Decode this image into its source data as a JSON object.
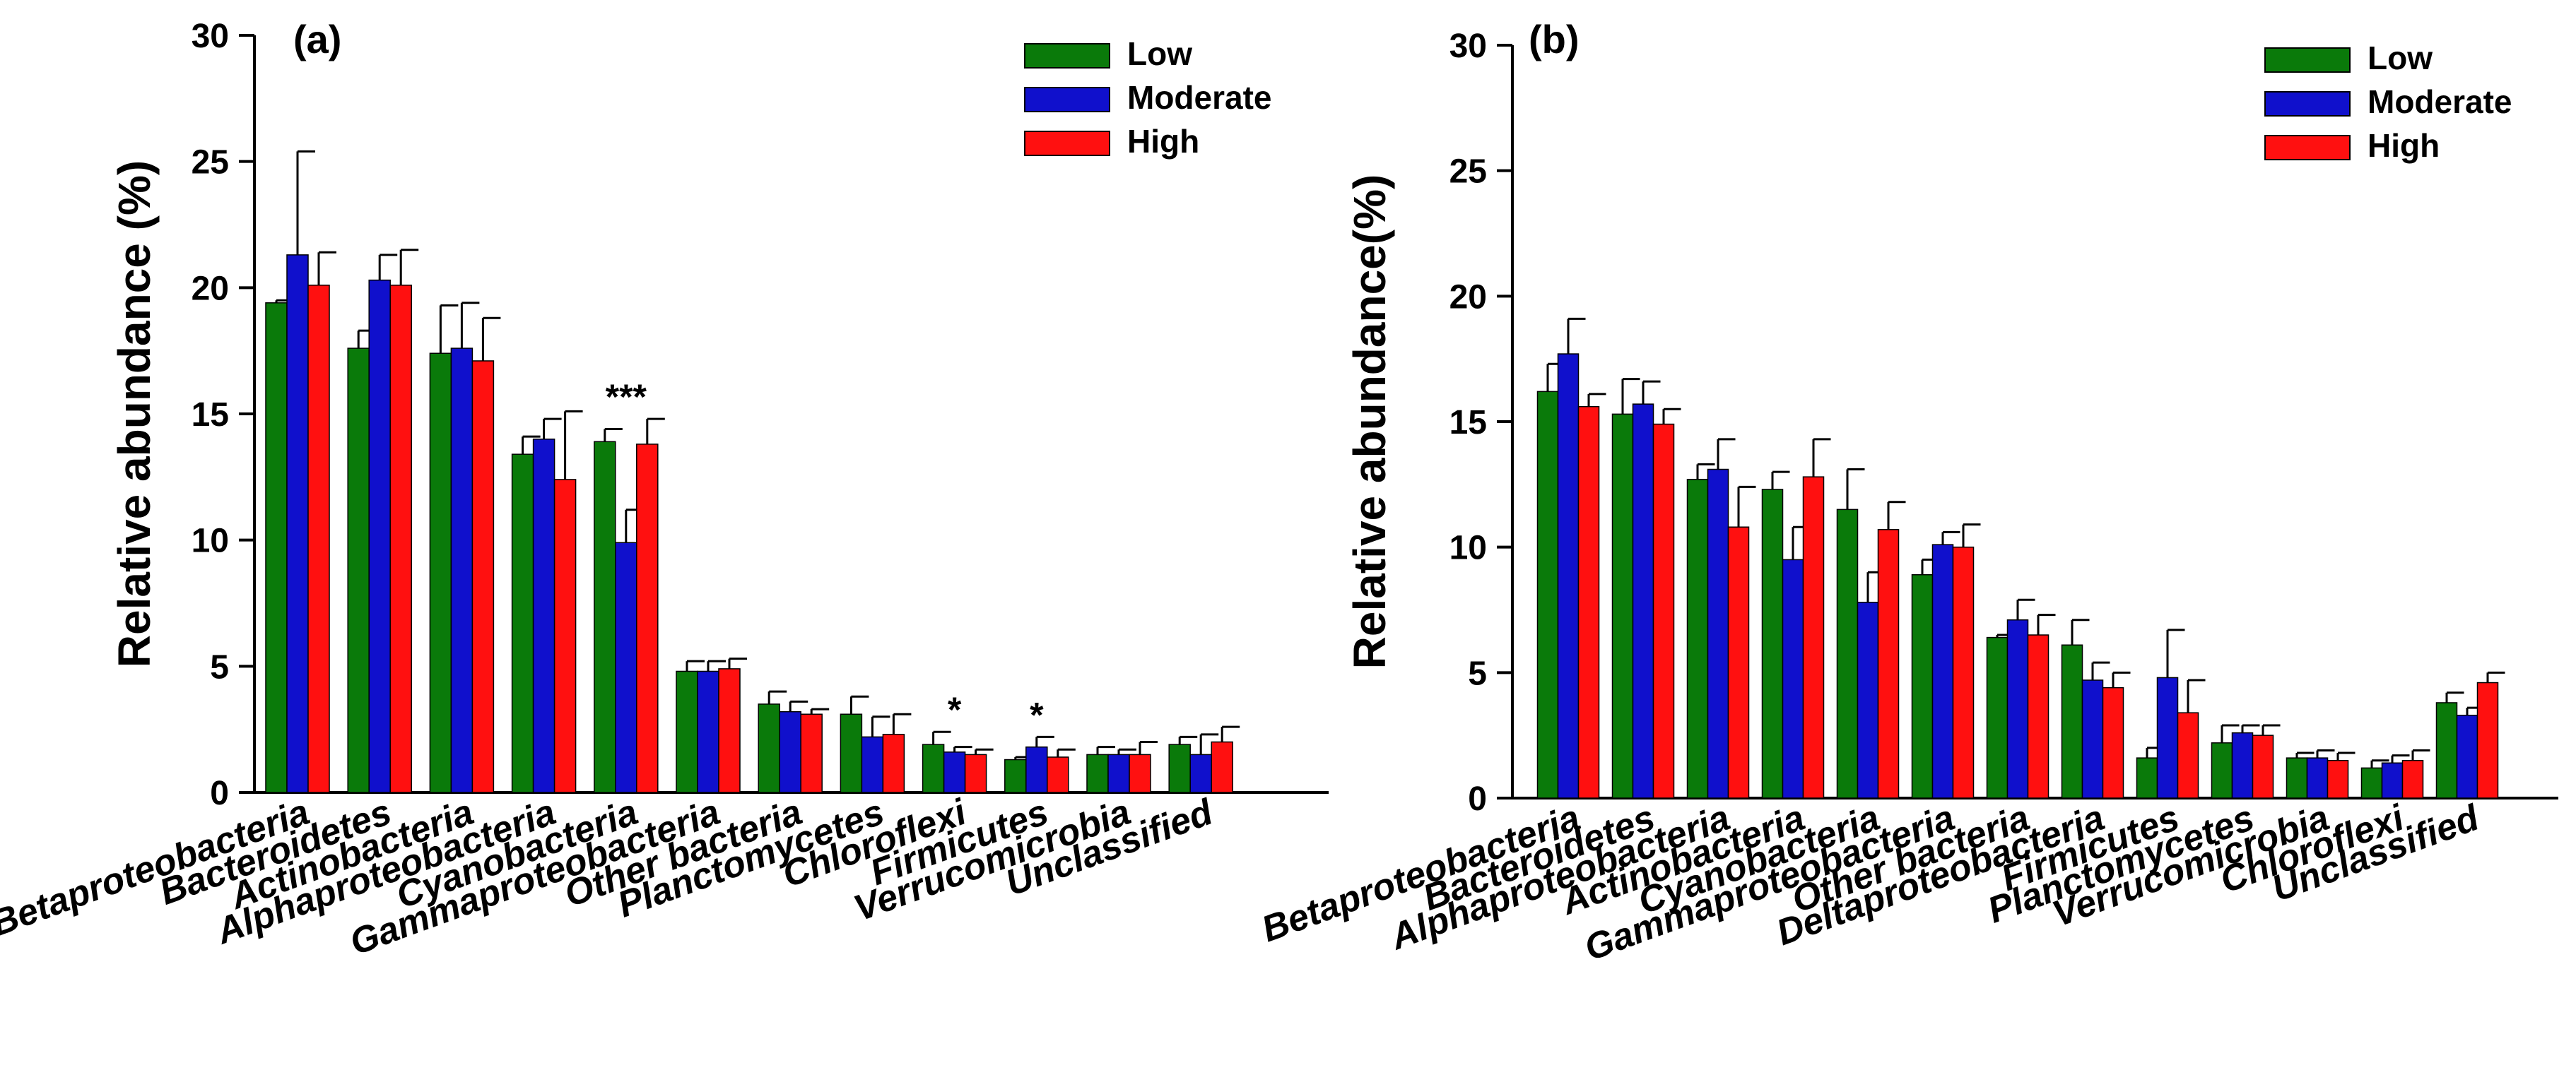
{
  "colors": {
    "Low": "#0a7a0a",
    "Moderate": "#1010cc",
    "High": "#ff1010",
    "axis": "#000000"
  },
  "chart_data": [
    {
      "type": "bar",
      "panel_label": "(a)",
      "ylabel": "Relative abundance (%)",
      "ylim": [
        0,
        30
      ],
      "yticks": [
        "0",
        "5",
        "10",
        "15",
        "20",
        "25",
        "30"
      ],
      "legend_position": "top-right",
      "categories": [
        "Betaproteobacteria",
        "Bacteroidetes",
        "Actinobacteria",
        "Alphaproteobacteria",
        "Cyanobacteria",
        "Gammaproteobacteria",
        "Other bacteria",
        "Planctomycetes",
        "Chloroflexi",
        "Firmicutes",
        "Verrucomicrobia",
        "Unclassified"
      ],
      "series": [
        {
          "name": "Low",
          "values": [
            19.4,
            17.6,
            17.4,
            13.4,
            13.9,
            4.8,
            3.5,
            3.1,
            1.9,
            1.3,
            1.5,
            1.9
          ],
          "errors": [
            0.1,
            0.7,
            1.9,
            0.7,
            0.5,
            0.4,
            0.5,
            0.7,
            0.5,
            0.1,
            0.3,
            0.3
          ]
        },
        {
          "name": "Moderate",
          "values": [
            21.3,
            20.3,
            17.6,
            14.0,
            9.9,
            4.8,
            3.2,
            2.2,
            1.6,
            1.8,
            1.5,
            1.5
          ],
          "errors": [
            4.1,
            1.0,
            1.8,
            0.8,
            1.3,
            0.4,
            0.4,
            0.8,
            0.2,
            0.4,
            0.2,
            0.8
          ]
        },
        {
          "name": "High",
          "values": [
            20.1,
            20.1,
            17.1,
            12.4,
            13.8,
            4.9,
            3.1,
            2.3,
            1.5,
            1.4,
            1.5,
            2.0
          ],
          "errors": [
            1.3,
            1.4,
            1.7,
            2.7,
            1.0,
            0.4,
            0.2,
            0.8,
            0.2,
            0.3,
            0.5,
            0.6
          ]
        }
      ],
      "annotations": [
        {
          "category_index": 4,
          "text": "***"
        },
        {
          "category_index": 8,
          "text": "*"
        },
        {
          "category_index": 9,
          "text": "*"
        }
      ]
    },
    {
      "type": "bar",
      "panel_label": "(b)",
      "ylabel": "Relative abundance(%)",
      "ylim": [
        0,
        30
      ],
      "yticks": [
        "0",
        "5",
        "10",
        "15",
        "20",
        "25",
        "30"
      ],
      "legend_position": "top-right",
      "categories": [
        "Betaproteobacteria",
        "Bacteroidetes",
        "Alphaproteobacteria",
        "Actinobacteria",
        "Cyanobacteria",
        "Gammaproteobacteria",
        "Other bacteria",
        "Deltaproteobacteria",
        "Firmicutes",
        "Planctomycetes",
        "Verrucomicrobia",
        "Chloroflexi",
        "Unclassified"
      ],
      "series": [
        {
          "name": "Low",
          "values": [
            16.2,
            15.3,
            12.7,
            12.3,
            11.5,
            8.9,
            6.4,
            6.1,
            1.6,
            2.2,
            1.6,
            1.2,
            3.8
          ],
          "errors": [
            1.1,
            1.4,
            0.6,
            0.7,
            1.6,
            0.6,
            0.1,
            1.0,
            0.4,
            0.7,
            0.2,
            0.3,
            0.4
          ]
        },
        {
          "name": "Moderate",
          "values": [
            17.7,
            15.7,
            13.1,
            9.5,
            7.8,
            10.1,
            7.1,
            4.7,
            4.8,
            2.6,
            1.6,
            1.4,
            3.3
          ],
          "errors": [
            1.4,
            0.9,
            1.2,
            1.3,
            1.2,
            0.5,
            0.8,
            0.7,
            1.9,
            0.3,
            0.3,
            0.3,
            0.3
          ]
        },
        {
          "name": "High",
          "values": [
            15.6,
            14.9,
            10.8,
            12.8,
            10.7,
            10.0,
            6.5,
            4.4,
            3.4,
            2.5,
            1.5,
            1.5,
            4.6
          ],
          "errors": [
            0.5,
            0.6,
            1.6,
            1.5,
            1.1,
            0.9,
            0.8,
            0.6,
            1.3,
            0.4,
            0.3,
            0.4,
            0.4
          ]
        }
      ],
      "annotations": []
    }
  ]
}
